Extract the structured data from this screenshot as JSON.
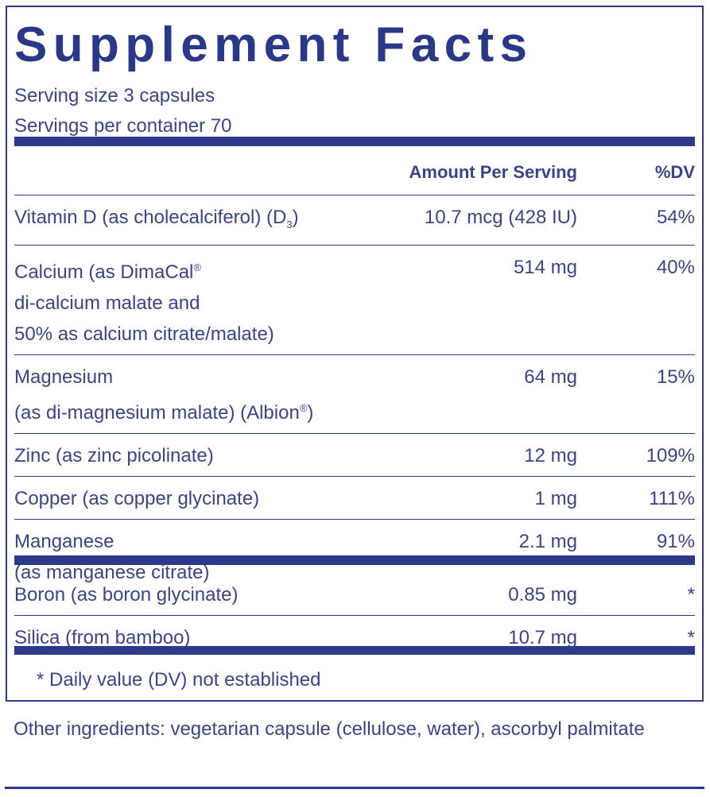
{
  "header": {
    "title": "Supplement Facts",
    "serving_size": "Serving size  3 capsules",
    "servings_per_container": "Servings per container  70"
  },
  "table": {
    "columns": [
      "Amount Per Serving",
      "%DV"
    ],
    "groups": [
      [
        {
          "name": [
            [
              "Vitamin D (as cholecalciferol) (D",
              {
                "sub": "3"
              },
              ")"
            ]
          ],
          "amount": "10.7 mcg (428 IU)",
          "dv": "54%"
        },
        {
          "name": [
            [
              "Calcium (as DimaCal",
              {
                "sup": "®"
              }
            ],
            [
              "di-calcium malate and"
            ],
            [
              "50% as calcium citrate/malate)"
            ]
          ],
          "amount": "514 mg",
          "dv": "40%"
        },
        {
          "name": [
            [
              "Magnesium"
            ],
            [
              "(as di-magnesium malate) (Albion",
              {
                "sup": "®"
              },
              ")"
            ]
          ],
          "amount": "64 mg",
          "dv": "15%"
        },
        {
          "name": [
            [
              "Zinc (as zinc picolinate)"
            ]
          ],
          "amount": "12 mg",
          "dv": "109%"
        },
        {
          "name": [
            [
              "Copper (as copper glycinate)"
            ]
          ],
          "amount": "1 mg",
          "dv": "111%"
        },
        {
          "name": [
            [
              "Manganese"
            ],
            [
              "(as manganese citrate)"
            ]
          ],
          "amount": "2.1 mg",
          "dv": "91%"
        }
      ],
      [
        {
          "name": [
            [
              "Boron (as boron glycinate)"
            ]
          ],
          "amount": "0.85 mg",
          "dv": "*"
        },
        {
          "name": [
            [
              "Silica (from bamboo)"
            ]
          ],
          "amount": "10.7 mg",
          "dv": "*"
        }
      ]
    ],
    "footnote": "* Daily value (DV) not established"
  },
  "other_ingredients": "Other ingredients: vegetarian capsule (cellulose, water), ascorbyl palmitate"
}
